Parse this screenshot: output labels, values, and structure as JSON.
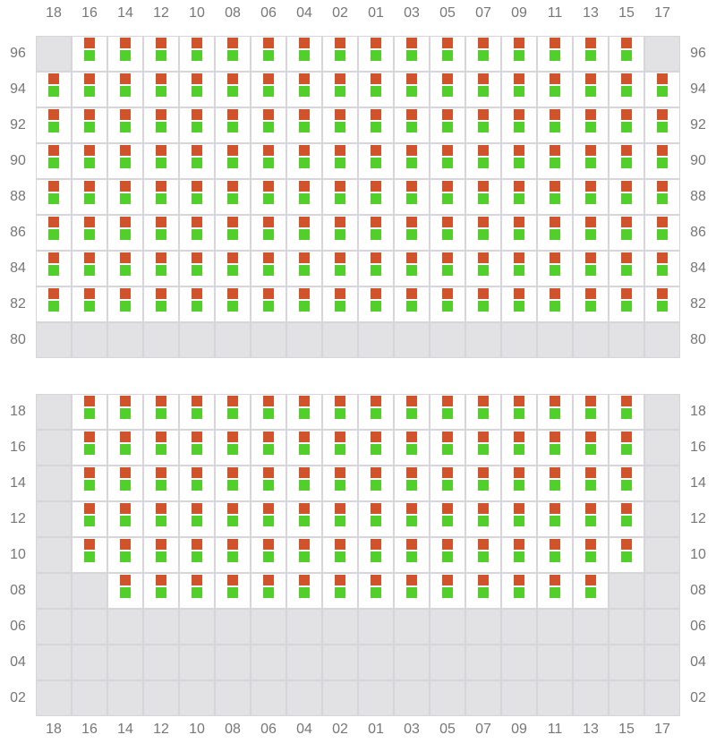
{
  "columns": [
    "18",
    "16",
    "14",
    "12",
    "10",
    "08",
    "06",
    "04",
    "02",
    "01",
    "03",
    "05",
    "07",
    "09",
    "11",
    "13",
    "15",
    "17"
  ],
  "colors": {
    "top_marker": "#d0532b",
    "bottom_marker": "#53cf2b",
    "empty_cell": "#e2e2e5",
    "grid_line": "#d6d5da"
  },
  "panels": [
    {
      "rows": [
        {
          "label": "96",
          "filled": [
            "16",
            "14",
            "12",
            "10",
            "08",
            "06",
            "04",
            "02",
            "01",
            "03",
            "05",
            "07",
            "09",
            "11",
            "13",
            "15"
          ]
        },
        {
          "label": "94",
          "filled": "all"
        },
        {
          "label": "92",
          "filled": "all"
        },
        {
          "label": "90",
          "filled": "all"
        },
        {
          "label": "88",
          "filled": "all"
        },
        {
          "label": "86",
          "filled": "all"
        },
        {
          "label": "84",
          "filled": "all"
        },
        {
          "label": "82",
          "filled": "all"
        },
        {
          "label": "80",
          "filled": []
        }
      ]
    },
    {
      "rows": [
        {
          "label": "18",
          "filled": [
            "16",
            "14",
            "12",
            "10",
            "08",
            "06",
            "04",
            "02",
            "01",
            "03",
            "05",
            "07",
            "09",
            "11",
            "13",
            "15"
          ]
        },
        {
          "label": "16",
          "filled": [
            "16",
            "14",
            "12",
            "10",
            "08",
            "06",
            "04",
            "02",
            "01",
            "03",
            "05",
            "07",
            "09",
            "11",
            "13",
            "15"
          ]
        },
        {
          "label": "14",
          "filled": [
            "16",
            "14",
            "12",
            "10",
            "08",
            "06",
            "04",
            "02",
            "01",
            "03",
            "05",
            "07",
            "09",
            "11",
            "13",
            "15"
          ]
        },
        {
          "label": "12",
          "filled": [
            "16",
            "14",
            "12",
            "10",
            "08",
            "06",
            "04",
            "02",
            "01",
            "03",
            "05",
            "07",
            "09",
            "11",
            "13",
            "15"
          ]
        },
        {
          "label": "10",
          "filled": [
            "16",
            "14",
            "12",
            "10",
            "08",
            "06",
            "04",
            "02",
            "01",
            "03",
            "05",
            "07",
            "09",
            "11",
            "13",
            "15"
          ]
        },
        {
          "label": "08",
          "filled": [
            "14",
            "12",
            "10",
            "08",
            "06",
            "04",
            "02",
            "01",
            "03",
            "05",
            "07",
            "09",
            "11",
            "13"
          ]
        },
        {
          "label": "06",
          "filled": []
        },
        {
          "label": "04",
          "filled": []
        },
        {
          "label": "02",
          "filled": []
        }
      ]
    }
  ]
}
